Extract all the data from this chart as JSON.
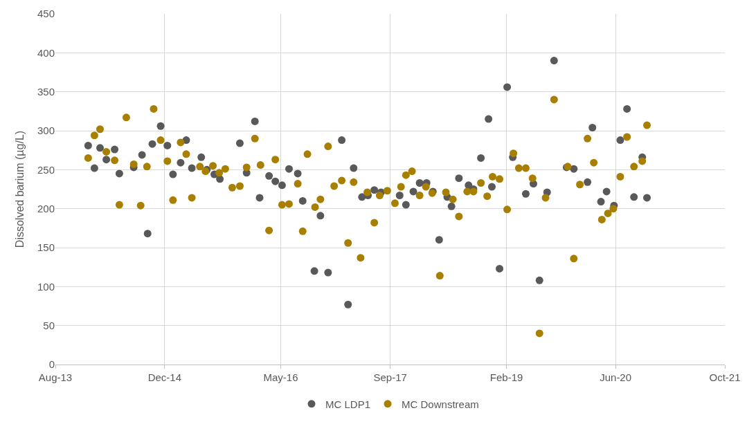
{
  "chart_data": {
    "type": "scatter",
    "ylabel": "Dissolved barium (µg/L)",
    "xlim": [
      "2013-08-01",
      "2021-10-01"
    ],
    "xticks": [
      {
        "value": "2013-08-01",
        "label": "Aug-13"
      },
      {
        "value": "2014-12-01",
        "label": "Dec-14"
      },
      {
        "value": "2016-05-01",
        "label": "May-16"
      },
      {
        "value": "2017-09-01",
        "label": "Sep-17"
      },
      {
        "value": "2019-02-01",
        "label": "Feb-19"
      },
      {
        "value": "2020-06-01",
        "label": "Jun-20"
      },
      {
        "value": "2021-10-01",
        "label": "Oct-21"
      }
    ],
    "ylim": [
      0,
      450
    ],
    "yticks": [
      0,
      50,
      100,
      150,
      200,
      250,
      300,
      350,
      400,
      450
    ],
    "grid": true,
    "legend": "bottom",
    "marker": "circle",
    "series": [
      {
        "name": "MC LDP1",
        "color": "#595959",
        "x": [
          "2013-12-25",
          "2014-01-22",
          "2014-02-16",
          "2014-03-16",
          "2014-04-22",
          "2014-05-13",
          "2014-07-16",
          "2014-08-22",
          "2014-09-16",
          "2014-10-07",
          "2014-11-13",
          "2014-12-13",
          "2015-01-07",
          "2015-02-10",
          "2015-03-07",
          "2015-04-01",
          "2015-05-13",
          "2015-06-07",
          "2015-07-10",
          "2015-08-04",
          "2015-11-01",
          "2015-12-01",
          "2016-01-07",
          "2016-01-28",
          "2016-03-10",
          "2016-04-07",
          "2016-05-07",
          "2016-06-07",
          "2016-07-16",
          "2016-08-07",
          "2016-09-28",
          "2016-10-25",
          "2016-11-28",
          "2017-01-28",
          "2017-02-25",
          "2017-03-22",
          "2017-04-28",
          "2017-05-25",
          "2017-06-22",
          "2017-07-22",
          "2017-10-13",
          "2017-11-10",
          "2017-12-13",
          "2018-01-10",
          "2018-02-10",
          "2018-03-10",
          "2018-04-07",
          "2018-05-13",
          "2018-06-01",
          "2018-07-04",
          "2018-08-16",
          "2018-09-07",
          "2018-10-10",
          "2018-11-13",
          "2018-11-28",
          "2019-01-01",
          "2019-02-04",
          "2019-03-01",
          "2019-04-28",
          "2019-06-01",
          "2019-06-28",
          "2019-08-01",
          "2019-09-01",
          "2019-10-27",
          "2019-11-28",
          "2020-01-28",
          "2020-02-19",
          "2020-03-28",
          "2020-04-22",
          "2020-05-25",
          "2020-06-22",
          "2020-07-22",
          "2020-08-22",
          "2020-09-28",
          "2020-10-19"
        ],
        "values": [
          281,
          252,
          278,
          263,
          276,
          245,
          253,
          269,
          168,
          283,
          306,
          281,
          244,
          259,
          288,
          252,
          266,
          250,
          244,
          238,
          284,
          246,
          312,
          214,
          242,
          235,
          230,
          251,
          245,
          210,
          120,
          191,
          118,
          288,
          77,
          252,
          215,
          217,
          224,
          221,
          217,
          205,
          222,
          233,
          233,
          222,
          160,
          215,
          203,
          239,
          230,
          225,
          265,
          315,
          228,
          123,
          356,
          266,
          219,
          232,
          108,
          221,
          390,
          253,
          251,
          234,
          304,
          209,
          222,
          204,
          288,
          328,
          215,
          266,
          214
        ]
      },
      {
        "name": "MC Downstream",
        "color": "#a97f00",
        "x": [
          "2013-12-25",
          "2014-01-22",
          "2014-02-16",
          "2014-03-16",
          "2014-04-22",
          "2014-05-13",
          "2014-06-13",
          "2014-07-16",
          "2014-08-16",
          "2014-09-13",
          "2014-10-13",
          "2014-11-13",
          "2014-12-13",
          "2015-01-07",
          "2015-02-10",
          "2015-03-07",
          "2015-04-01",
          "2015-05-07",
          "2015-06-01",
          "2015-07-04",
          "2015-08-01",
          "2015-08-28",
          "2015-09-28",
          "2015-11-01",
          "2015-12-01",
          "2016-01-07",
          "2016-02-01",
          "2016-03-10",
          "2016-04-07",
          "2016-05-07",
          "2016-06-07",
          "2016-07-16",
          "2016-08-07",
          "2016-08-28",
          "2016-10-01",
          "2016-10-25",
          "2016-11-28",
          "2016-12-25",
          "2017-01-28",
          "2017-02-25",
          "2017-03-22",
          "2017-04-22",
          "2017-05-22",
          "2017-06-22",
          "2017-07-16",
          "2017-08-19",
          "2017-09-22",
          "2017-10-19",
          "2017-11-10",
          "2017-12-07",
          "2018-01-10",
          "2018-02-07",
          "2018-03-07",
          "2018-04-10",
          "2018-05-07",
          "2018-06-07",
          "2018-07-04",
          "2018-08-10",
          "2018-09-07",
          "2018-10-10",
          "2018-11-07",
          "2018-12-01",
          "2019-01-01",
          "2019-02-04",
          "2019-03-04",
          "2019-03-28",
          "2019-04-28",
          "2019-05-28",
          "2019-06-28",
          "2019-07-25",
          "2019-09-01",
          "2019-11-01",
          "2019-11-28",
          "2019-12-25",
          "2020-01-28",
          "2020-02-25",
          "2020-04-01",
          "2020-04-28",
          "2020-05-22",
          "2020-06-22",
          "2020-07-22",
          "2020-08-22",
          "2020-09-28",
          "2020-10-19"
        ],
        "values": [
          265,
          294,
          302,
          273,
          262,
          205,
          317,
          257,
          204,
          254,
          328,
          288,
          261,
          211,
          285,
          270,
          214,
          254,
          248,
          255,
          246,
          251,
          227,
          229,
          253,
          290,
          256,
          172,
          263,
          205,
          206,
          232,
          171,
          270,
          202,
          212,
          280,
          229,
          236,
          156,
          234,
          137,
          221,
          182,
          217,
          223,
          207,
          228,
          243,
          248,
          217,
          228,
          220,
          114,
          221,
          212,
          190,
          222,
          222,
          233,
          216,
          241,
          238,
          199,
          271,
          252,
          252,
          239,
          40,
          214,
          340,
          254,
          136,
          231,
          290,
          259,
          186,
          194,
          200,
          241,
          292,
          254,
          261,
          307
        ]
      }
    ]
  }
}
